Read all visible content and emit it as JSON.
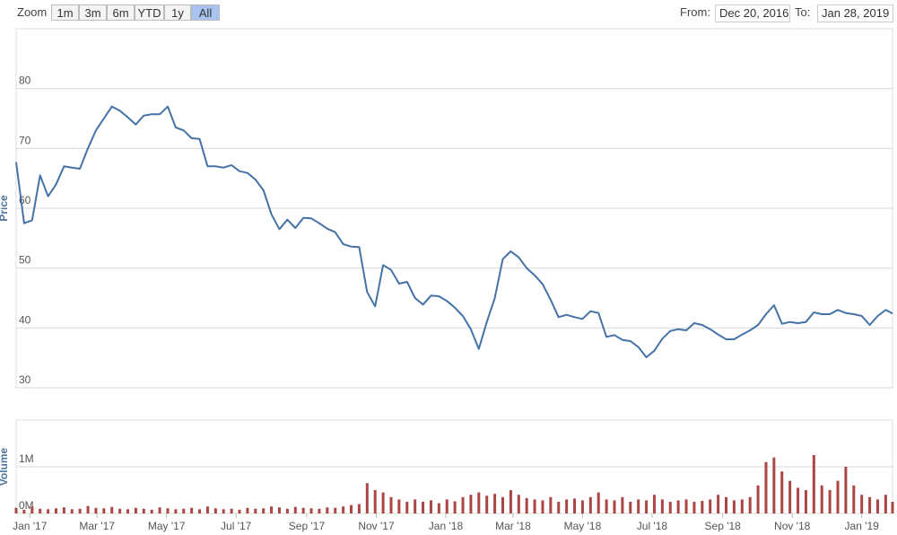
{
  "toolbar": {
    "zoom_label": "Zoom",
    "buttons": [
      "1m",
      "3m",
      "6m",
      "YTD",
      "1y",
      "All"
    ],
    "selected_button": 5,
    "from_label": "From:",
    "from": "Dec 20, 2016",
    "to_label": "To:",
    "to": "Jan 28, 2019"
  },
  "chart_data": {
    "type": "stock",
    "x": [
      "2016-12-20",
      "2016-12-27",
      "2017-01-03",
      "2017-01-10",
      "2017-01-17",
      "2017-01-24",
      "2017-01-31",
      "2017-02-07",
      "2017-02-14",
      "2017-02-21",
      "2017-02-28",
      "2017-03-07",
      "2017-03-14",
      "2017-03-21",
      "2017-03-28",
      "2017-04-04",
      "2017-04-11",
      "2017-04-18",
      "2017-04-25",
      "2017-05-02",
      "2017-05-09",
      "2017-05-16",
      "2017-05-23",
      "2017-05-30",
      "2017-06-06",
      "2017-06-13",
      "2017-06-20",
      "2017-06-27",
      "2017-07-04",
      "2017-07-11",
      "2017-07-18",
      "2017-07-25",
      "2017-08-01",
      "2017-08-08",
      "2017-08-15",
      "2017-08-22",
      "2017-08-29",
      "2017-09-05",
      "2017-09-12",
      "2017-09-19",
      "2017-09-26",
      "2017-10-03",
      "2017-10-10",
      "2017-10-17",
      "2017-10-24",
      "2017-10-31",
      "2017-11-07",
      "2017-11-14",
      "2017-11-21",
      "2017-11-28",
      "2017-12-05",
      "2017-12-12",
      "2017-12-19",
      "2017-12-26",
      "2018-01-02",
      "2018-01-09",
      "2018-01-16",
      "2018-01-23",
      "2018-01-30",
      "2018-02-06",
      "2018-02-13",
      "2018-02-20",
      "2018-02-27",
      "2018-03-06",
      "2018-03-13",
      "2018-03-20",
      "2018-03-27",
      "2018-04-03",
      "2018-04-10",
      "2018-04-17",
      "2018-04-24",
      "2018-05-01",
      "2018-05-08",
      "2018-05-15",
      "2018-05-22",
      "2018-05-29",
      "2018-06-05",
      "2018-06-12",
      "2018-06-19",
      "2018-06-26",
      "2018-07-03",
      "2018-07-10",
      "2018-07-17",
      "2018-07-24",
      "2018-07-31",
      "2018-08-07",
      "2018-08-14",
      "2018-08-21",
      "2018-08-28",
      "2018-09-04",
      "2018-09-11",
      "2018-09-18",
      "2018-09-25",
      "2018-10-02",
      "2018-10-09",
      "2018-10-16",
      "2018-10-23",
      "2018-10-30",
      "2018-11-06",
      "2018-11-13",
      "2018-11-20",
      "2018-11-27",
      "2018-12-04",
      "2018-12-11",
      "2018-12-18",
      "2018-12-25",
      "2019-01-01",
      "2019-01-08",
      "2019-01-15",
      "2019-01-22",
      "2019-01-28"
    ],
    "xlim": [
      "2016-12-20",
      "2019-01-28"
    ],
    "xticks": [
      {
        "value": "2017-01-01",
        "label": "Jan '17"
      },
      {
        "value": "2017-03-01",
        "label": "Mar '17"
      },
      {
        "value": "2017-05-01",
        "label": "May '17"
      },
      {
        "value": "2017-07-01",
        "label": "Jul '17"
      },
      {
        "value": "2017-09-01",
        "label": "Sep '17"
      },
      {
        "value": "2017-11-01",
        "label": "Nov '17"
      },
      {
        "value": "2018-01-01",
        "label": "Jan '18"
      },
      {
        "value": "2018-03-01",
        "label": "Mar '18"
      },
      {
        "value": "2018-05-01",
        "label": "May '18"
      },
      {
        "value": "2018-07-01",
        "label": "Jul '18"
      },
      {
        "value": "2018-09-01",
        "label": "Sep '18"
      },
      {
        "value": "2018-11-01",
        "label": "Nov '18"
      },
      {
        "value": "2019-01-01",
        "label": "Jan '19"
      }
    ],
    "panels": [
      {
        "type": "line",
        "y_label": "Price",
        "color": "#4572a7",
        "grid": true,
        "ylim": [
          30,
          90
        ],
        "yticks": [
          30,
          40,
          50,
          60,
          70,
          80
        ],
        "values": [
          67.7,
          57.5,
          58,
          65.5,
          62,
          64,
          67,
          66.8,
          66.6,
          70,
          73,
          75,
          77,
          76.3,
          75.2,
          74,
          75.5,
          75.7,
          75.7,
          77,
          73.5,
          73,
          71.7,
          71.6,
          67,
          67,
          66.8,
          67.2,
          66.2,
          65.9,
          64.8,
          63,
          59,
          56.5,
          58.1,
          56.7,
          58.4,
          58.3,
          57.5,
          56.6,
          56,
          54,
          53.6,
          53.5,
          46,
          43.6,
          50.5,
          49.7,
          47.4,
          47.7,
          45,
          43.9,
          45.4,
          45.3,
          44.5,
          43.4,
          42,
          39.8,
          36.5,
          41,
          45,
          51.5,
          52.8,
          51.8,
          50,
          48.8,
          47.3,
          44.7,
          41.8,
          42.2,
          41.8,
          41.5,
          42.8,
          42.5,
          38.5,
          38.8,
          38,
          37.8,
          36.8,
          35.1,
          36.2,
          38.2,
          39.5,
          39.8,
          39.6,
          40.8,
          40.5,
          39.8,
          38.9,
          38.1,
          38.1,
          38.9,
          39.6,
          40.5,
          42.3,
          43.8,
          40.7,
          41,
          40.8,
          41,
          42.6,
          42.3,
          42.3,
          43,
          42.5,
          42.3,
          42,
          40.5,
          42,
          43,
          42.4
        ]
      },
      {
        "type": "bar",
        "y_label": "Volume",
        "color": "#aa4643",
        "grid": true,
        "ylim": [
          0,
          2000000
        ],
        "yticks": [
          {
            "value": 0,
            "label": "0M"
          },
          {
            "value": 1000000,
            "label": "1M"
          }
        ],
        "values": [
          120000,
          80000,
          150000,
          100000,
          90000,
          110000,
          130000,
          90000,
          100000,
          160000,
          120000,
          110000,
          140000,
          100000,
          90000,
          120000,
          100000,
          80000,
          130000,
          110000,
          90000,
          100000,
          120000,
          90000,
          150000,
          110000,
          90000,
          100000,
          80000,
          120000,
          100000,
          110000,
          150000,
          130000,
          100000,
          140000,
          120000,
          110000,
          100000,
          130000,
          120000,
          150000,
          180000,
          200000,
          650000,
          500000,
          450000,
          350000,
          300000,
          250000,
          300000,
          250000,
          280000,
          220000,
          300000,
          260000,
          350000,
          400000,
          450000,
          380000,
          420000,
          350000,
          500000,
          400000,
          330000,
          300000,
          280000,
          350000,
          250000,
          300000,
          320000,
          280000,
          350000,
          450000,
          300000,
          280000,
          350000,
          250000,
          300000,
          280000,
          400000,
          300000,
          250000,
          280000,
          300000,
          250000,
          270000,
          300000,
          400000,
          350000,
          280000,
          300000,
          350000,
          600000,
          1100000,
          1200000,
          900000,
          700000,
          550000,
          500000,
          1250000,
          600000,
          500000,
          700000,
          1000000,
          600000,
          400000,
          350000,
          300000,
          400000,
          250000
        ]
      }
    ]
  }
}
